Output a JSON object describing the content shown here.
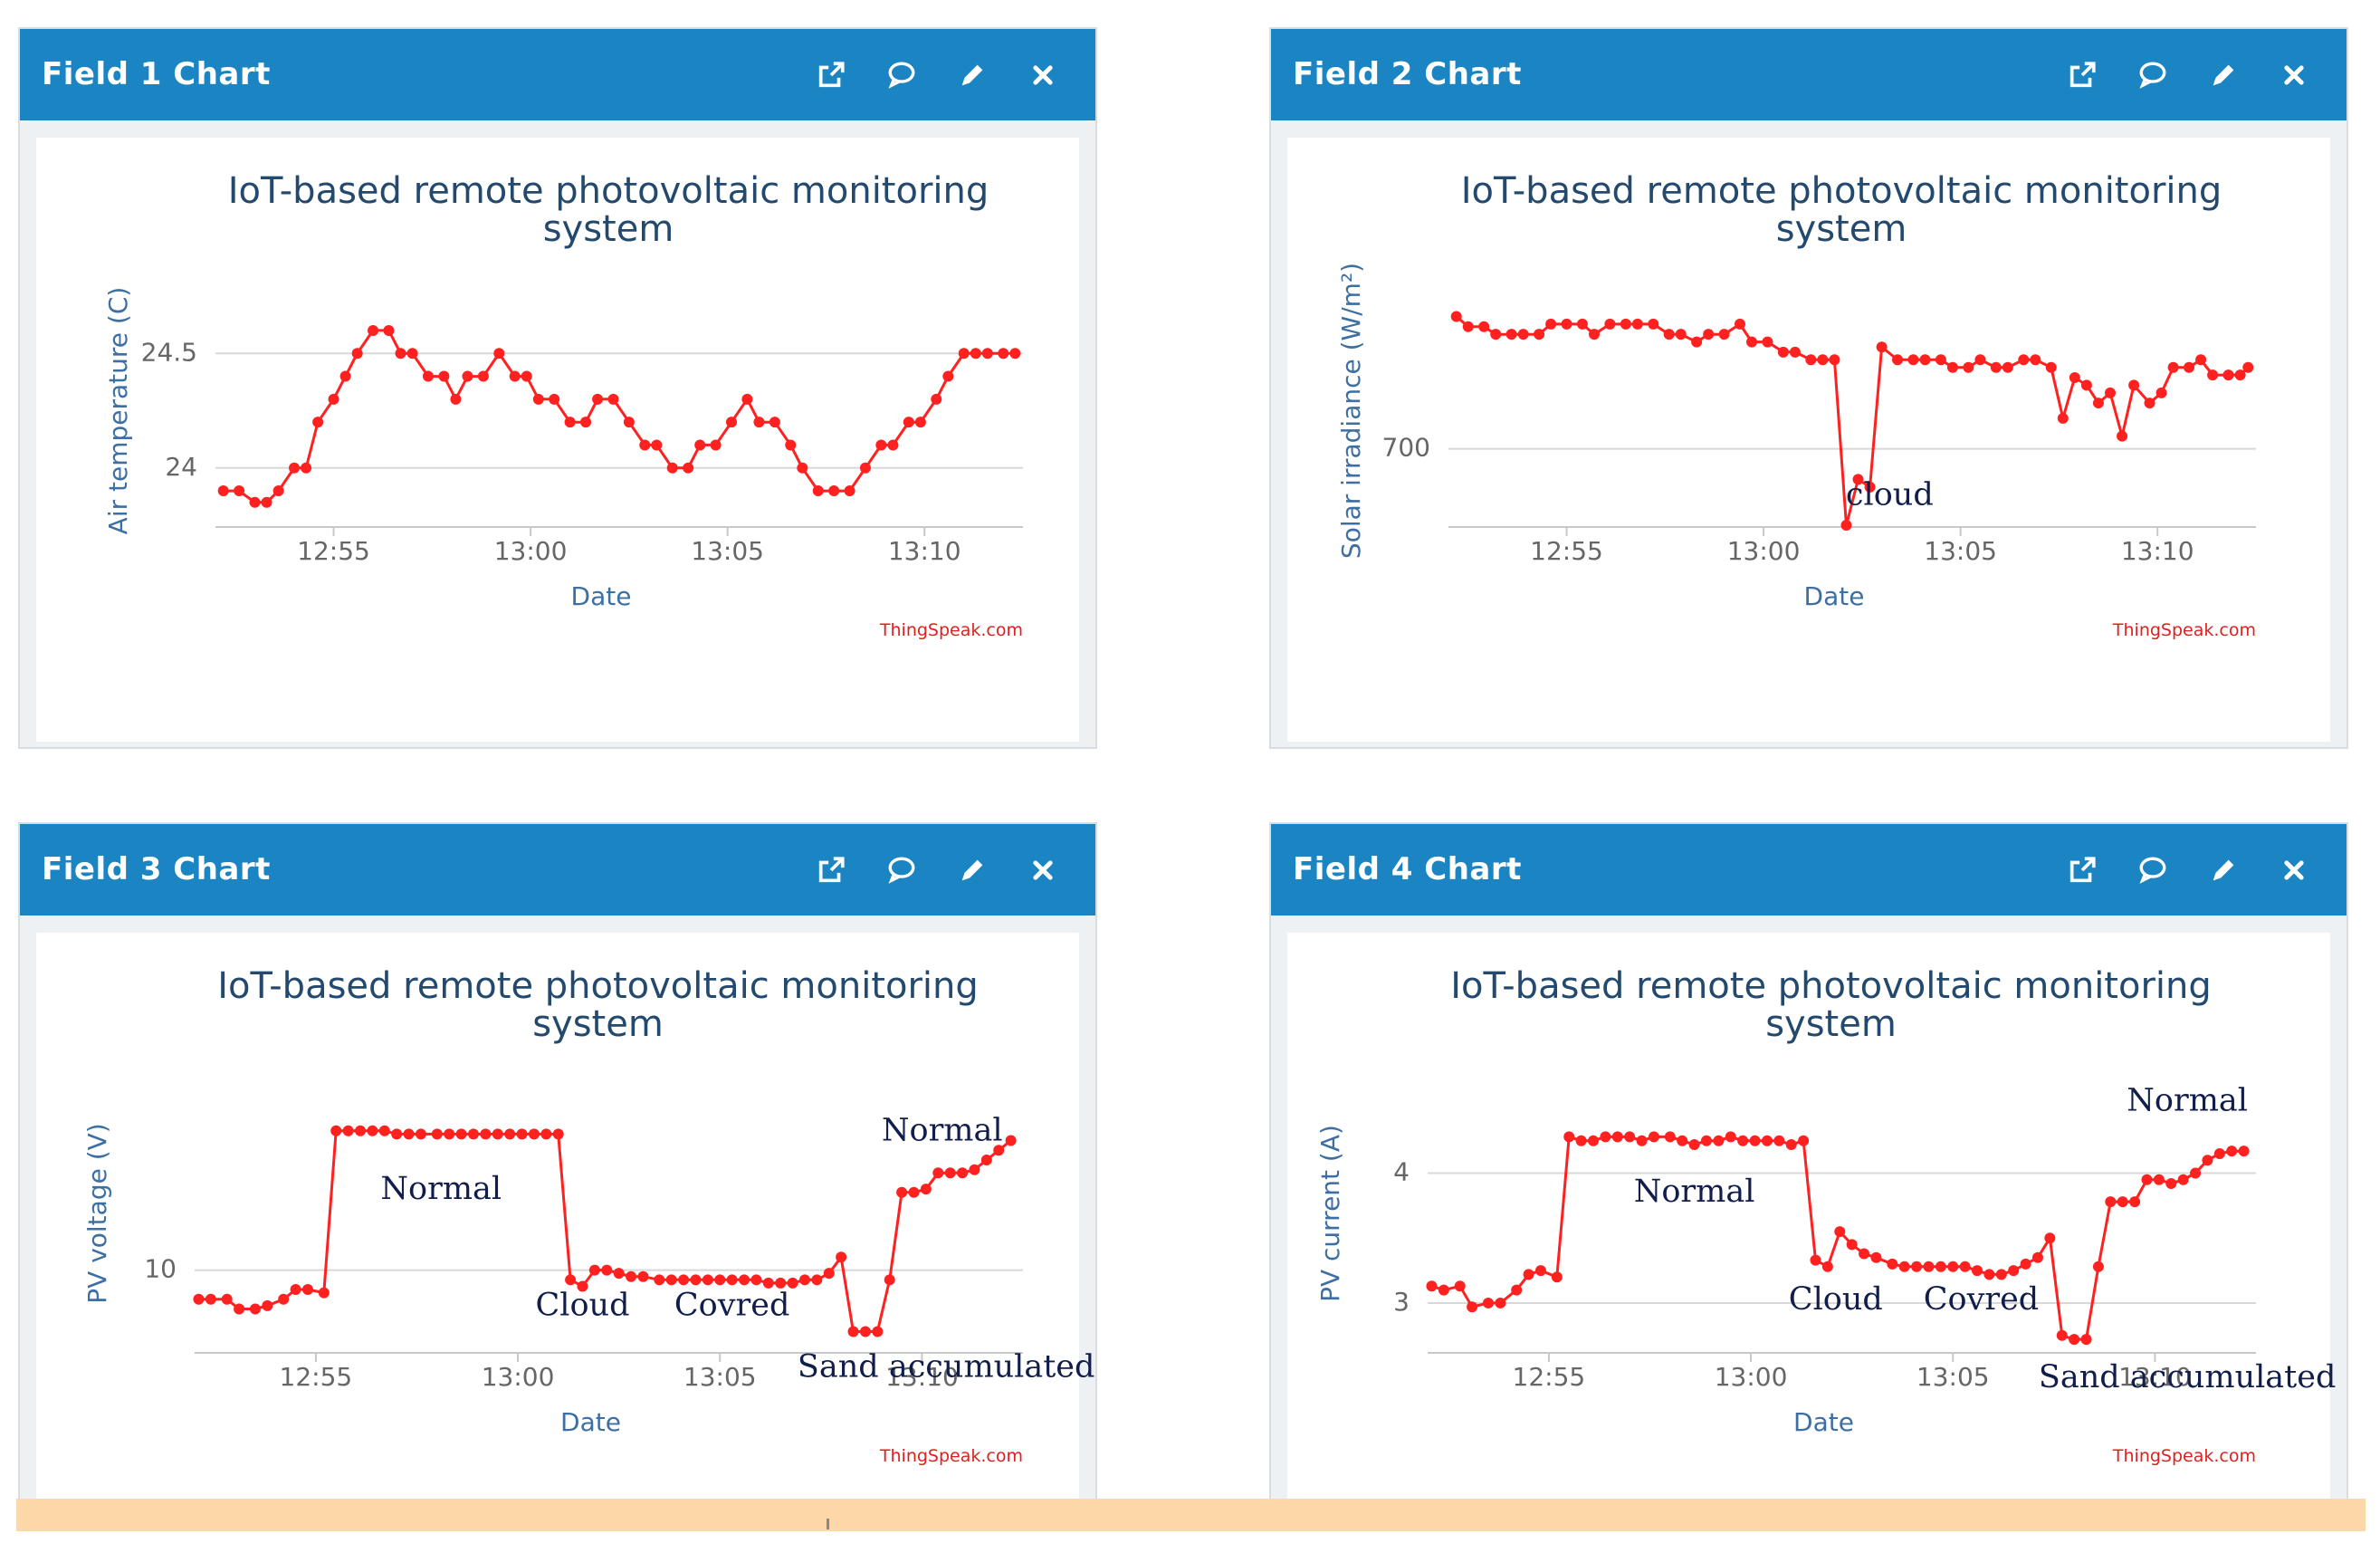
{
  "colors": {
    "header": "#1a85c2",
    "series": "#ff2020",
    "grid": "#d8d8d8",
    "credit": "#e02020",
    "annotation": "#111d4a"
  },
  "icons": [
    "external-link-icon",
    "comment-icon",
    "pencil-icon",
    "close-icon"
  ],
  "widgets": [
    {
      "title": "Field 1 Chart",
      "chart_data": {
        "type": "line",
        "title": "IoT-based remote photovoltaic monitoring system",
        "title_lines": [
          "IoT-based remote photovoltaic monitoring",
          "system"
        ],
        "xlabel": "Date",
        "ylabel": "Air temperature (C)",
        "credit": "ThingSpeak.com",
        "xlim": [
          "12:52",
          "13:12.5"
        ],
        "ylim": [
          23.75,
          24.75
        ],
        "xticks": [
          "12:55",
          "13:00",
          "13:05",
          "13:10"
        ],
        "yticks": [
          "24",
          "24.5"
        ],
        "series": [
          {
            "x": [
              "12:52.2",
              "12:52.6",
              "12:53.0",
              "12:53.3",
              "12:53.6",
              "12:54.0",
              "12:54.3",
              "12:54.6",
              "12:55.0",
              "12:55.3",
              "12:55.6",
              "12:56.0",
              "12:56.4",
              "12:56.7",
              "12:57.0",
              "12:57.4",
              "12:57.8",
              "12:58.1",
              "12:58.4",
              "12:58.8",
              "12:59.2",
              "12:59.6",
              "12:59.9",
              "13:00.2",
              "13:00.6",
              "13:01.0",
              "13:01.4",
              "13:01.7",
              "13:02.1",
              "13:02.5",
              "13:02.9",
              "13:03.2",
              "13:03.6",
              "13:04.0",
              "13:04.3",
              "13:04.7",
              "13:05.1",
              "13:05.5",
              "13:05.8",
              "13:06.2",
              "13:06.6",
              "13:06.9",
              "13:07.3",
              "13:07.7",
              "13:08.1",
              "13:08.5",
              "13:08.9",
              "13:09.2",
              "13:09.6",
              "13:09.9",
              "13:10.3",
              "13:10.6",
              "13:11.0",
              "13:11.3",
              "13:11.6",
              "13:12.0",
              "13:12.3"
            ],
            "y": [
              23.9,
              23.9,
              23.85,
              23.85,
              23.9,
              24.0,
              24.0,
              24.2,
              24.3,
              24.4,
              24.5,
              24.6,
              24.6,
              24.5,
              24.5,
              24.4,
              24.4,
              24.3,
              24.4,
              24.4,
              24.5,
              24.4,
              24.4,
              24.3,
              24.3,
              24.2,
              24.2,
              24.3,
              24.3,
              24.2,
              24.1,
              24.1,
              24.0,
              24.0,
              24.1,
              24.1,
              24.2,
              24.3,
              24.2,
              24.2,
              24.1,
              24.0,
              23.9,
              23.9,
              23.9,
              24.0,
              24.1,
              24.1,
              24.2,
              24.2,
              24.3,
              24.4,
              24.5,
              24.5,
              24.5,
              24.5,
              24.5
            ]
          }
        ]
      }
    },
    {
      "title": "Field 2 Chart",
      "chart_data": {
        "type": "line",
        "title": "IoT-based remote photovoltaic monitoring system",
        "title_lines": [
          "IoT-based remote photovoltaic monitoring",
          "system"
        ],
        "xlabel": "Date",
        "ylabel": "Solar irradiance (W/m²)",
        "credit": "ThingSpeak.com",
        "annotations": [
          {
            "text": "cloud",
            "x": "13:03.2",
            "y": 678
          }
        ],
        "xlim": [
          "12:52",
          "13:12.5"
        ],
        "ylim": [
          670,
          760
        ],
        "xticks": [
          "12:55",
          "13:00",
          "13:05",
          "13:10"
        ],
        "yticks": [
          "700"
        ],
        "series": [
          {
            "x": [
              "12:52.2",
              "12:52.5",
              "12:52.9",
              "12:53.2",
              "12:53.6",
              "12:53.9",
              "12:54.3",
              "12:54.6",
              "12:55.0",
              "12:55.4",
              "12:55.7",
              "12:56.1",
              "12:56.5",
              "12:56.8",
              "12:57.2",
              "12:57.6",
              "12:57.9",
              "12:58.3",
              "12:58.6",
              "12:59.0",
              "12:59.4",
              "12:59.7",
              "13:00.1",
              "13:00.5",
              "13:00.8",
              "13:01.2",
              "13:01.5",
              "13:01.8",
              "13:02.1",
              "13:02.4",
              "13:02.7",
              "13:03.0",
              "13:03.4",
              "13:03.8",
              "13:04.1",
              "13:04.5",
              "13:04.8",
              "13:05.2",
              "13:05.5",
              "13:05.9",
              "13:06.2",
              "13:06.6",
              "13:06.9",
              "13:07.3",
              "13:07.6",
              "13:07.9",
              "13:08.2",
              "13:08.5",
              "13:08.8",
              "13:09.1",
              "13:09.4",
              "13:09.8",
              "13:10.1",
              "13:10.4",
              "13:10.8",
              "13:11.1",
              "13:11.4",
              "13:11.8",
              "13:12.1",
              "13:12.3"
            ],
            "y": [
              752,
              748,
              748,
              745,
              745,
              745,
              745,
              749,
              749,
              749,
              745,
              749,
              749,
              749,
              749,
              745,
              745,
              742,
              745,
              745,
              749,
              742,
              742,
              738,
              738,
              735,
              735,
              735,
              670,
              688,
              685,
              740,
              735,
              735,
              735,
              735,
              732,
              732,
              735,
              732,
              732,
              735,
              735,
              732,
              712,
              728,
              725,
              718,
              722,
              705,
              725,
              718,
              722,
              732,
              732,
              735,
              729,
              729,
              729,
              732
            ]
          }
        ]
      }
    },
    {
      "title": "Field 3 Chart",
      "chart_data": {
        "type": "line",
        "title": "IoT-based remote photovoltaic monitoring system",
        "title_lines": [
          "IoT-based remote photovoltaic monitoring",
          "system"
        ],
        "xlabel": "Date",
        "ylabel": "PV voltage (V)",
        "credit": "ThingSpeak.com",
        "annotations": [
          {
            "text": "Normal",
            "x": "12:58.1",
            "y": 12.2
          },
          {
            "text": "Cloud",
            "x": "13:01.6",
            "y": 8.6
          },
          {
            "text": "Covred",
            "x": "13:05.3",
            "y": 8.6
          },
          {
            "text": "Normal",
            "x": "13:10.5",
            "y": 14.0
          },
          {
            "text": "Sand accumulated",
            "x": "13:10.6",
            "y": 6.7
          }
        ],
        "xlim": [
          "12:52",
          "13:12.5"
        ],
        "ylim": [
          7.5,
          16.0
        ],
        "xticks": [
          "12:55",
          "13:00",
          "13:05",
          "13:10"
        ],
        "yticks": [
          "10"
        ],
        "series": [
          {
            "x": [
              "12:52.1",
              "12:52.4",
              "12:52.8",
              "12:53.1",
              "12:53.5",
              "12:53.8",
              "12:54.2",
              "12:54.5",
              "12:54.8",
              "12:55.2",
              "12:55.5",
              "12:55.8",
              "12:56.1",
              "12:56.4",
              "12:56.7",
              "12:57.0",
              "12:57.3",
              "12:57.6",
              "12:58.0",
              "12:58.3",
              "12:58.6",
              "12:58.9",
              "12:59.2",
              "12:59.5",
              "12:59.8",
              "13:00.1",
              "13:00.4",
              "13:00.7",
              "13:01.0",
              "13:01.3",
              "13:01.6",
              "13:01.9",
              "13:02.2",
              "13:02.5",
              "13:02.8",
              "13:03.1",
              "13:03.5",
              "13:03.8",
              "13:04.1",
              "13:04.4",
              "13:04.7",
              "13:05.0",
              "13:05.3",
              "13:05.6",
              "13:05.9",
              "13:06.2",
              "13:06.5",
              "13:06.8",
              "13:07.1",
              "13:07.4",
              "13:07.7",
              "13:08.0",
              "13:08.3",
              "13:08.6",
              "13:08.9",
              "13:09.2",
              "13:09.5",
              "13:09.8",
              "13:10.1",
              "13:10.4",
              "13:10.7",
              "13:11.0",
              "13:11.3",
              "13:11.6",
              "13:11.9",
              "13:12.2"
            ],
            "y": [
              9.1,
              9.1,
              9.1,
              8.8,
              8.8,
              8.9,
              9.1,
              9.4,
              9.4,
              9.3,
              14.3,
              14.3,
              14.3,
              14.3,
              14.3,
              14.2,
              14.2,
              14.2,
              14.2,
              14.2,
              14.2,
              14.2,
              14.2,
              14.2,
              14.2,
              14.2,
              14.2,
              14.2,
              14.2,
              9.7,
              9.5,
              10.0,
              10.0,
              9.9,
              9.8,
              9.8,
              9.7,
              9.7,
              9.7,
              9.7,
              9.7,
              9.7,
              9.7,
              9.7,
              9.7,
              9.6,
              9.6,
              9.6,
              9.7,
              9.7,
              9.9,
              10.4,
              8.1,
              8.1,
              8.1,
              9.7,
              12.4,
              12.4,
              12.5,
              13.0,
              13.0,
              13.0,
              13.1,
              13.4,
              13.7,
              14.0
            ]
          }
        ]
      }
    },
    {
      "title": "Field 4 Chart",
      "chart_data": {
        "type": "line",
        "title": "IoT-based remote photovoltaic monitoring system",
        "title_lines": [
          "IoT-based remote photovoltaic monitoring",
          "system"
        ],
        "xlabel": "Date",
        "ylabel": "PV current (A)",
        "credit": "ThingSpeak.com",
        "annotations": [
          {
            "text": "Normal",
            "x": "12:58.6",
            "y": 3.78
          },
          {
            "text": "Cloud",
            "x": "13:02.1",
            "y": 2.95
          },
          {
            "text": "Covred",
            "x": "13:05.7",
            "y": 2.95
          },
          {
            "text": "Normal",
            "x": "13:10.8",
            "y": 4.48
          },
          {
            "text": "Sand accumulated",
            "x": "13:10.8",
            "y": 2.35
          }
        ],
        "xlim": [
          "12:52",
          "13:12.5"
        ],
        "ylim": [
          2.63,
          4.75
        ],
        "xticks": [
          "12:55",
          "13:00",
          "13:05",
          "13:10"
        ],
        "yticks": [
          "3",
          "4"
        ],
        "series": [
          {
            "x": [
              "12:52.1",
              "12:52.4",
              "12:52.8",
              "12:53.1",
              "12:53.5",
              "12:53.8",
              "12:54.2",
              "12:54.5",
              "12:54.8",
              "12:55.2",
              "12:55.5",
              "12:55.8",
              "12:56.1",
              "12:56.4",
              "12:56.7",
              "12:57.0",
              "12:57.3",
              "12:57.6",
              "12:58.0",
              "12:58.3",
              "12:58.6",
              "12:58.9",
              "12:59.2",
              "12:59.5",
              "12:59.8",
              "13:00.1",
              "13:00.4",
              "13:00.7",
              "13:01.0",
              "13:01.3",
              "13:01.6",
              "13:01.9",
              "13:02.2",
              "13:02.5",
              "13:02.8",
              "13:03.1",
              "13:03.5",
              "13:03.8",
              "13:04.1",
              "13:04.4",
              "13:04.7",
              "13:05.0",
              "13:05.3",
              "13:05.6",
              "13:05.9",
              "13:06.2",
              "13:06.5",
              "13:06.8",
              "13:07.1",
              "13:07.4",
              "13:07.7",
              "13:08.0",
              "13:08.3",
              "13:08.6",
              "13:08.9",
              "13:09.2",
              "13:09.5",
              "13:09.8",
              "13:10.1",
              "13:10.4",
              "13:10.7",
              "13:11.0",
              "13:11.3",
              "13:11.6",
              "13:11.9",
              "13:12.2"
            ],
            "y": [
              3.13,
              3.1,
              3.13,
              2.97,
              3.0,
              3.0,
              3.1,
              3.22,
              3.25,
              3.2,
              4.28,
              4.25,
              4.25,
              4.28,
              4.28,
              4.28,
              4.25,
              4.28,
              4.28,
              4.25,
              4.22,
              4.25,
              4.25,
              4.28,
              4.25,
              4.25,
              4.25,
              4.25,
              4.22,
              4.25,
              3.33,
              3.28,
              3.55,
              3.45,
              3.38,
              3.35,
              3.3,
              3.28,
              3.28,
              3.28,
              3.28,
              3.28,
              3.28,
              3.25,
              3.22,
              3.22,
              3.25,
              3.3,
              3.35,
              3.5,
              2.75,
              2.72,
              2.72,
              3.28,
              3.78,
              3.78,
              3.78,
              3.95,
              3.95,
              3.92,
              3.95,
              4.0,
              4.1,
              4.15,
              4.17,
              4.17
            ]
          }
        ]
      }
    }
  ]
}
